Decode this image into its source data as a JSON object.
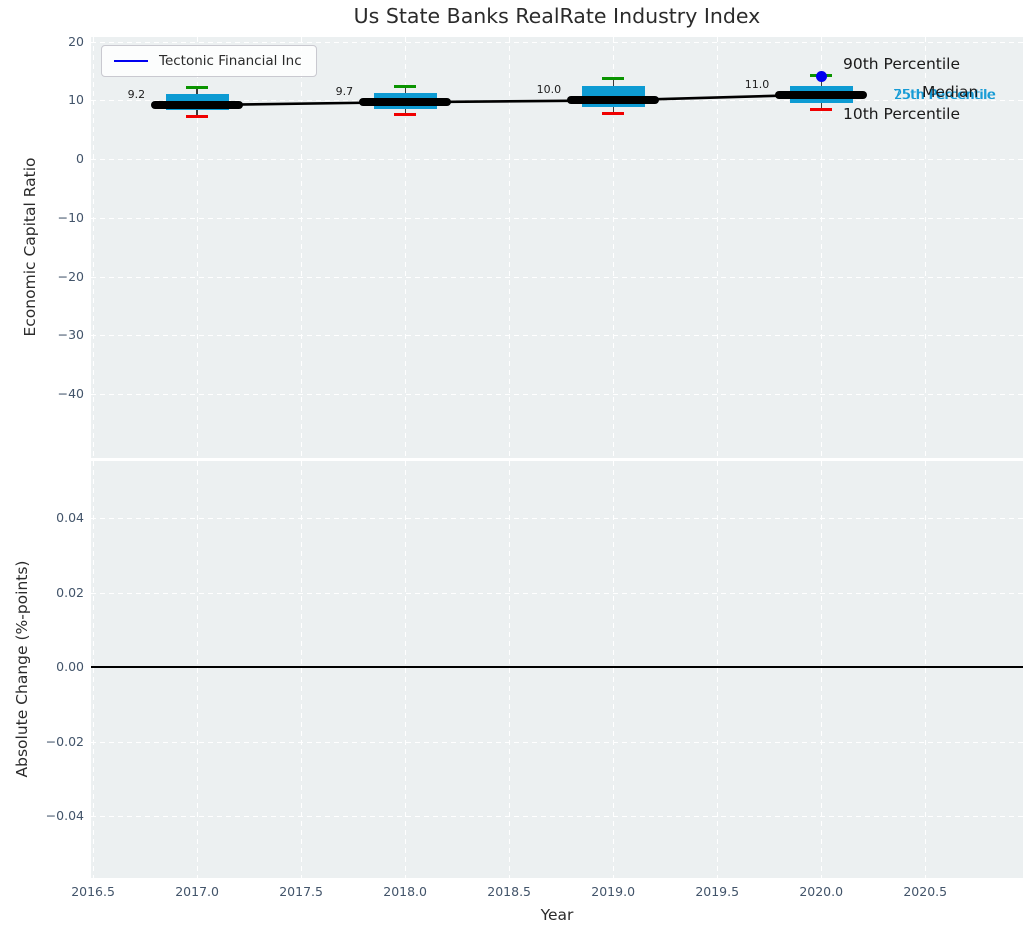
{
  "title": "Us State Banks RealRate Industry Index",
  "colors": {
    "plot_bg": "#ecf0f1",
    "grid": "#ffffff",
    "tick_label": "#42546a",
    "text": "#2b2b2b",
    "box_fill": "#0d9bd3",
    "percentile_text_blue": "#169bd5",
    "median_line": "#000000",
    "p90_cap_green": "#0a9400",
    "p10_cap_red": "#f00000",
    "company_blue": "#0000f0",
    "zero_line": "#000000"
  },
  "chart_data": [
    {
      "type": "boxplot-line",
      "title": "Us State Banks RealRate Industry Index",
      "ylabel": "Economic Capital Ratio",
      "xlabel": "Year",
      "grid": true,
      "legend_position": "upper left",
      "xlim": [
        2016.49,
        2020.97
      ],
      "ylim": [
        -50.9,
        20.8
      ],
      "ytick_labels": [
        "20",
        "10",
        "0",
        "−10",
        "−20",
        "−30",
        "−40"
      ],
      "ytick_values": [
        20,
        10,
        0,
        -10,
        -20,
        -30,
        -40
      ],
      "xtick_labels": [
        "2016.5",
        "2017.0",
        "2017.5",
        "2018.0",
        "2018.5",
        "2019.0",
        "2019.5",
        "2020.0",
        "2020.5"
      ],
      "xtick_values": [
        2016.5,
        2017.0,
        2017.5,
        2018.0,
        2018.5,
        2019.0,
        2019.5,
        2020.0,
        2020.5
      ],
      "legend": {
        "entries": [
          {
            "label": "Tectonic Financial Inc",
            "color": "#0000f0"
          }
        ]
      },
      "industry_boxes": {
        "years": [
          2017,
          2018,
          2019,
          2020
        ],
        "median": [
          9.2,
          9.7,
          10.0,
          11.0
        ],
        "median_labels": [
          "9.2",
          "9.7",
          "10.0",
          "11.0"
        ],
        "q1_25th": [
          8.3,
          8.5,
          8.9,
          9.5
        ],
        "q3_75th": [
          11.1,
          11.3,
          12.5,
          12.4
        ],
        "p10_10th": [
          7.3,
          7.6,
          7.7,
          8.4
        ],
        "p90_90th": [
          12.2,
          12.3,
          13.8,
          14.2
        ]
      },
      "company_point": {
        "name": "Tectonic Financial Inc",
        "year": 2020,
        "value": 14.0
      },
      "annotations": {
        "p90": "90th Percentile",
        "median": "Median",
        "p75": "75th Percentile",
        "p25": "25th Percentile",
        "p10": "10th Percentile"
      }
    },
    {
      "type": "line",
      "ylabel": "Absolute Change (%-points)",
      "grid": true,
      "ylim": [
        -0.0566,
        0.0553
      ],
      "ytick_labels": [
        "0.04",
        "0.02",
        "0.00",
        "−0.02",
        "−0.04"
      ],
      "ytick_values": [
        0.04,
        0.02,
        0.0,
        -0.02,
        -0.04
      ],
      "zero_line_value": 0.0
    }
  ]
}
